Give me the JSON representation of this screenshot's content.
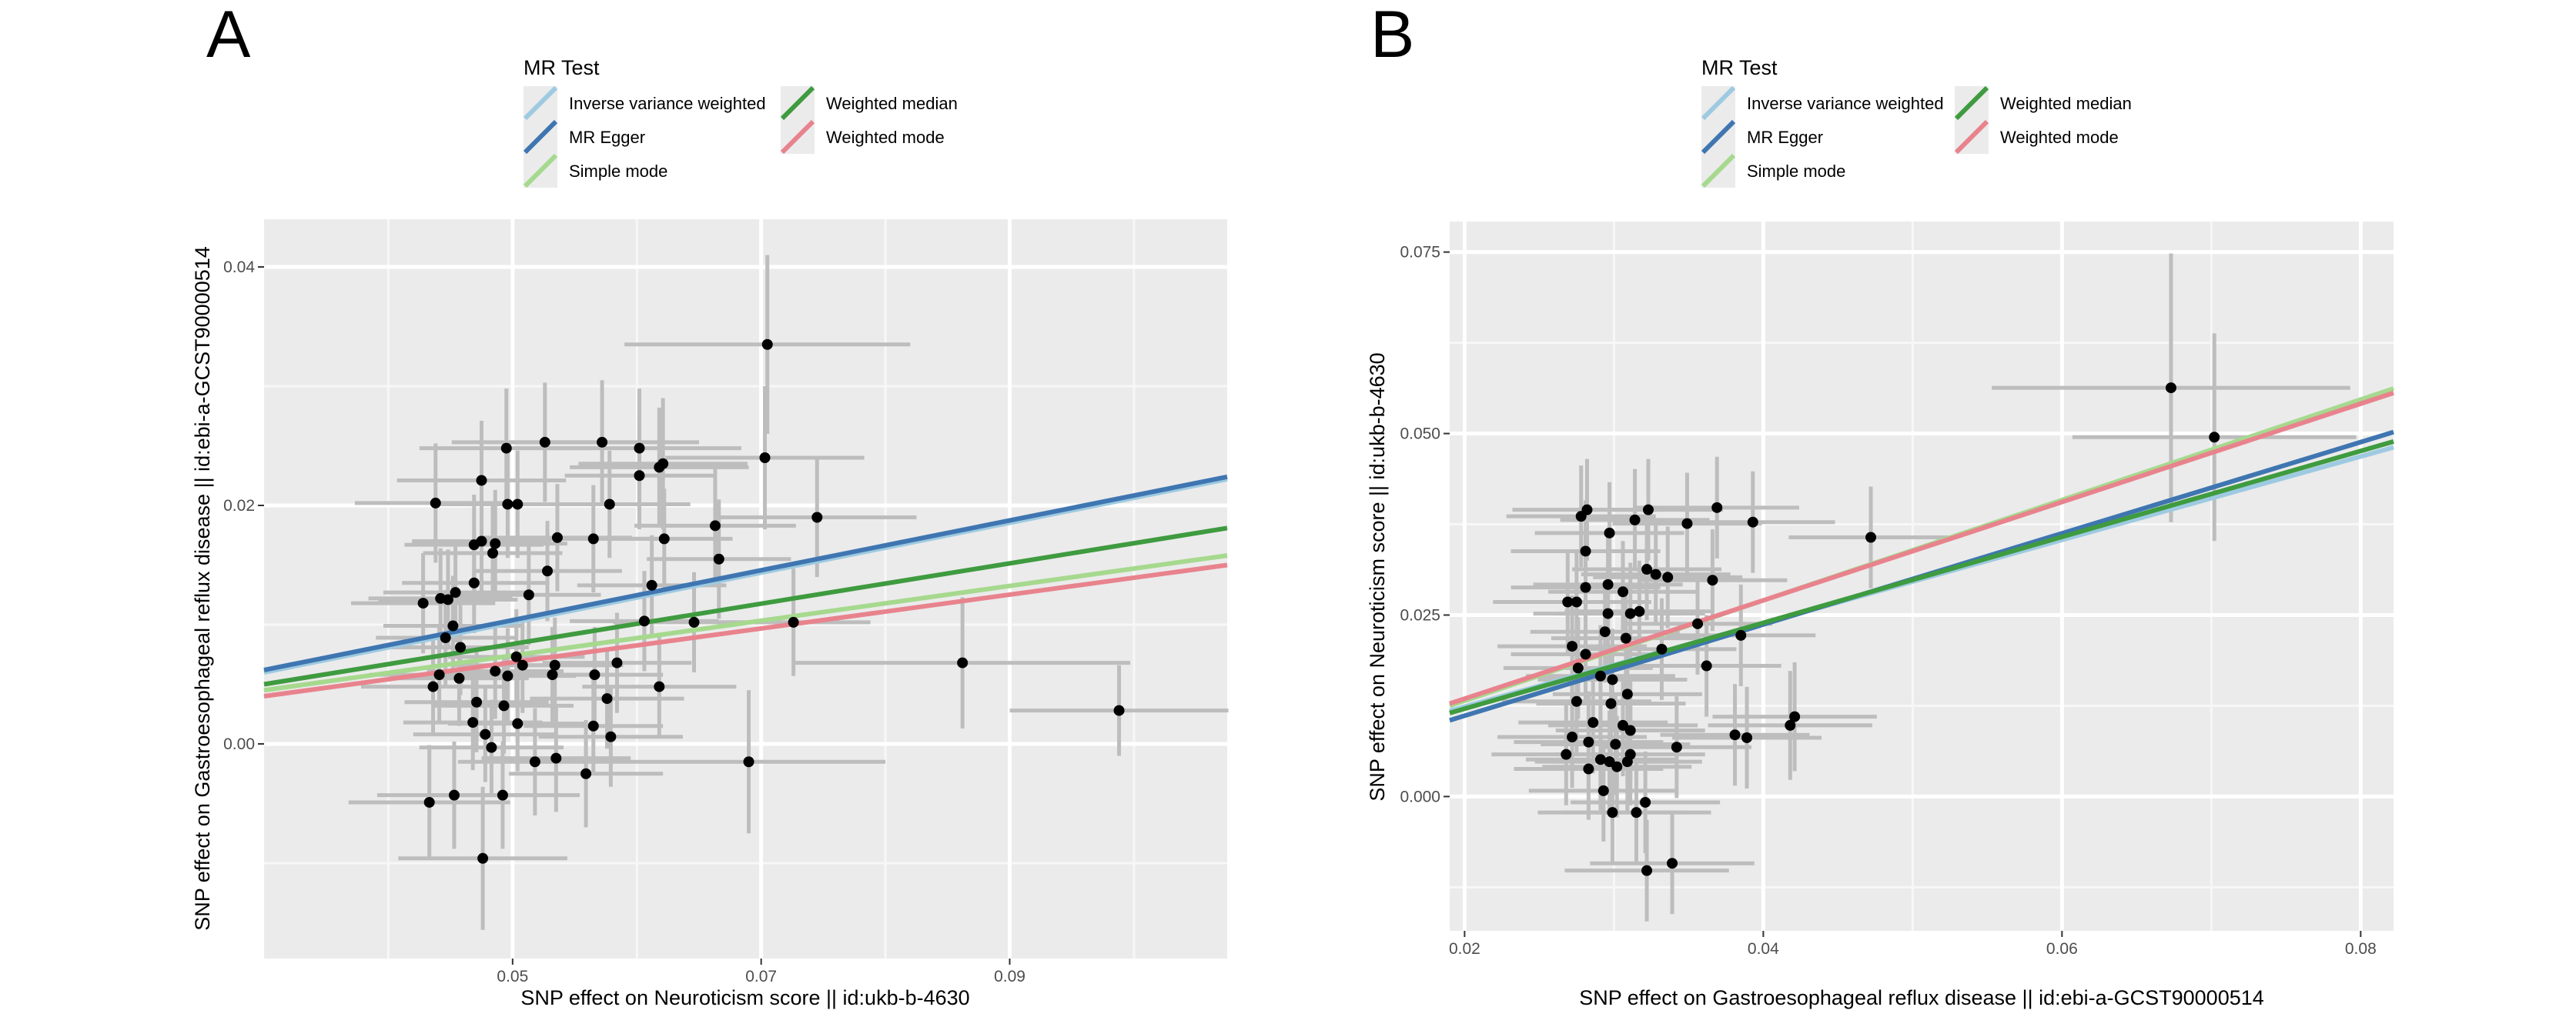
{
  "legend": {
    "title": "MR Test",
    "items": [
      {
        "label": "Inverse variance weighted",
        "color": "#9ecae1"
      },
      {
        "label": "MR Egger",
        "color": "#3f76b1"
      },
      {
        "label": "Simple mode",
        "color": "#a6d98e"
      },
      {
        "label": "Weighted median",
        "color": "#3f9b3f"
      },
      {
        "label": "Weighted mode",
        "color": "#e8838d"
      }
    ]
  },
  "chart_data": [
    {
      "type": "scatter",
      "panel_label": "A",
      "xlabel": "SNP effect on Neuroticism score || id:ukb-b-4630",
      "ylabel": "SNP effect on Gastroesophageal reflux disease || id:ebi-a-GCST90000514",
      "xlim": [
        0.03,
        0.1075
      ],
      "ylim": [
        -0.018,
        0.044
      ],
      "xticks": [
        0.05,
        0.07,
        0.09
      ],
      "xtick_labels": [
        "0.05",
        "0.07",
        "0.09"
      ],
      "yticks": [
        0.0,
        0.02,
        0.04
      ],
      "ytick_labels": [
        "0.00",
        "0.02",
        "0.04"
      ],
      "grid": true,
      "points": [
        {
          "x": 0.0705,
          "y": 0.0335,
          "xerr": 0.0115,
          "yerr": 0.0075
        },
        {
          "x": 0.0703,
          "y": 0.024,
          "xerr": 0.008,
          "yerr": 0.006
        },
        {
          "x": 0.0745,
          "y": 0.019,
          "xerr": 0.008,
          "yerr": 0.005
        },
        {
          "x": 0.0862,
          "y": 0.0068,
          "xerr": 0.0135,
          "yerr": 0.0055
        },
        {
          "x": 0.0988,
          "y": 0.0028,
          "xerr": 0.0088,
          "yerr": 0.0038
        },
        {
          "x": 0.0726,
          "y": 0.0102,
          "xerr": 0.0062,
          "yerr": 0.0045
        },
        {
          "x": 0.069,
          "y": -0.0015,
          "xerr": 0.011,
          "yerr": 0.006
        },
        {
          "x": 0.0663,
          "y": 0.0183,
          "xerr": 0.0065,
          "yerr": 0.005
        },
        {
          "x": 0.0666,
          "y": 0.0155,
          "xerr": 0.0058,
          "yerr": 0.005
        },
        {
          "x": 0.0646,
          "y": 0.0102,
          "xerr": 0.0065,
          "yerr": 0.0042
        },
        {
          "x": 0.0621,
          "y": 0.0235,
          "xerr": 0.0068,
          "yerr": 0.0055
        },
        {
          "x": 0.0618,
          "y": 0.0232,
          "xerr": 0.0072,
          "yerr": 0.005
        },
        {
          "x": 0.0602,
          "y": 0.0248,
          "xerr": 0.0082,
          "yerr": 0.005
        },
        {
          "x": 0.0602,
          "y": 0.0225,
          "xerr": 0.006,
          "yerr": 0.0045
        },
        {
          "x": 0.0622,
          "y": 0.0172,
          "xerr": 0.0055,
          "yerr": 0.0042
        },
        {
          "x": 0.0612,
          "y": 0.0133,
          "xerr": 0.006,
          "yerr": 0.0042
        },
        {
          "x": 0.0618,
          "y": 0.0048,
          "xerr": 0.0062,
          "yerr": 0.0042
        },
        {
          "x": 0.0606,
          "y": 0.0103,
          "xerr": 0.006,
          "yerr": 0.0042
        },
        {
          "x": 0.0572,
          "y": 0.0253,
          "xerr": 0.0078,
          "yerr": 0.0052
        },
        {
          "x": 0.0578,
          "y": 0.0201,
          "xerr": 0.0065,
          "yerr": 0.0045
        },
        {
          "x": 0.0565,
          "y": 0.0172,
          "xerr": 0.0058,
          "yerr": 0.0045
        },
        {
          "x": 0.0584,
          "y": 0.0068,
          "xerr": 0.006,
          "yerr": 0.0042
        },
        {
          "x": 0.0576,
          "y": 0.0038,
          "xerr": 0.0062,
          "yerr": 0.0042
        },
        {
          "x": 0.0579,
          "y": 0.0006,
          "xerr": 0.0058,
          "yerr": 0.0042
        },
        {
          "x": 0.0566,
          "y": 0.0058,
          "xerr": 0.0055,
          "yerr": 0.004
        },
        {
          "x": 0.0559,
          "y": -0.0025,
          "xerr": 0.0062,
          "yerr": 0.0045
        },
        {
          "x": 0.0565,
          "y": 0.0015,
          "xerr": 0.0056,
          "yerr": 0.004
        },
        {
          "x": 0.0526,
          "y": 0.0253,
          "xerr": 0.0075,
          "yerr": 0.005
        },
        {
          "x": 0.0536,
          "y": 0.0173,
          "xerr": 0.006,
          "yerr": 0.0045
        },
        {
          "x": 0.0528,
          "y": 0.0145,
          "xerr": 0.006,
          "yerr": 0.0042
        },
        {
          "x": 0.0532,
          "y": 0.0058,
          "xerr": 0.0055,
          "yerr": 0.004
        },
        {
          "x": 0.0534,
          "y": 0.0066,
          "xerr": 0.0055,
          "yerr": 0.004
        },
        {
          "x": 0.0535,
          "y": -0.0012,
          "xerr": 0.006,
          "yerr": 0.0045
        },
        {
          "x": 0.0518,
          "y": -0.0015,
          "xerr": 0.0062,
          "yerr": 0.0045
        },
        {
          "x": 0.0504,
          "y": 0.0201,
          "xerr": 0.0065,
          "yerr": 0.0045
        },
        {
          "x": 0.0496,
          "y": 0.0201,
          "xerr": 0.0062,
          "yerr": 0.0045
        },
        {
          "x": 0.0495,
          "y": 0.0248,
          "xerr": 0.007,
          "yerr": 0.005
        },
        {
          "x": 0.0486,
          "y": 0.0168,
          "xerr": 0.0058,
          "yerr": 0.0045
        },
        {
          "x": 0.0484,
          "y": 0.016,
          "xerr": 0.0056,
          "yerr": 0.0042
        },
        {
          "x": 0.0475,
          "y": 0.017,
          "xerr": 0.0056,
          "yerr": 0.0042
        },
        {
          "x": 0.0475,
          "y": 0.0221,
          "xerr": 0.0068,
          "yerr": 0.005
        },
        {
          "x": 0.0469,
          "y": 0.0135,
          "xerr": 0.0058,
          "yerr": 0.0042
        },
        {
          "x": 0.0469,
          "y": 0.0167,
          "xerr": 0.0056,
          "yerr": 0.0042
        },
        {
          "x": 0.0513,
          "y": 0.0125,
          "xerr": 0.0058,
          "yerr": 0.0042
        },
        {
          "x": 0.0503,
          "y": 0.0073,
          "xerr": 0.0055,
          "yerr": 0.004
        },
        {
          "x": 0.0508,
          "y": 0.0066,
          "xerr": 0.0055,
          "yerr": 0.004
        },
        {
          "x": 0.0496,
          "y": 0.0057,
          "xerr": 0.0055,
          "yerr": 0.004
        },
        {
          "x": 0.0486,
          "y": 0.0061,
          "xerr": 0.0055,
          "yerr": 0.004
        },
        {
          "x": 0.0493,
          "y": 0.0032,
          "xerr": 0.0056,
          "yerr": 0.004
        },
        {
          "x": 0.0504,
          "y": 0.0017,
          "xerr": 0.0056,
          "yerr": 0.004
        },
        {
          "x": 0.0471,
          "y": 0.0035,
          "xerr": 0.0058,
          "yerr": 0.0042
        },
        {
          "x": 0.0468,
          "y": 0.0018,
          "xerr": 0.0056,
          "yerr": 0.004
        },
        {
          "x": 0.0478,
          "y": 0.0008,
          "xerr": 0.0058,
          "yerr": 0.004
        },
        {
          "x": 0.0483,
          "y": -0.0003,
          "xerr": 0.0058,
          "yerr": 0.004
        },
        {
          "x": 0.0492,
          "y": -0.0043,
          "xerr": 0.0062,
          "yerr": 0.0045
        },
        {
          "x": 0.0476,
          "y": -0.0096,
          "xerr": 0.0068,
          "yerr": 0.006
        },
        {
          "x": 0.0454,
          "y": 0.0127,
          "xerr": 0.0058,
          "yerr": 0.0042
        },
        {
          "x": 0.0448,
          "y": 0.0121,
          "xerr": 0.0056,
          "yerr": 0.0042
        },
        {
          "x": 0.0442,
          "y": 0.0122,
          "xerr": 0.0058,
          "yerr": 0.0042
        },
        {
          "x": 0.0438,
          "y": 0.0202,
          "xerr": 0.0065,
          "yerr": 0.005
        },
        {
          "x": 0.0428,
          "y": 0.0118,
          "xerr": 0.0058,
          "yerr": 0.0042
        },
        {
          "x": 0.0452,
          "y": 0.0099,
          "xerr": 0.0056,
          "yerr": 0.0042
        },
        {
          "x": 0.0446,
          "y": 0.0089,
          "xerr": 0.0056,
          "yerr": 0.004
        },
        {
          "x": 0.0458,
          "y": 0.0081,
          "xerr": 0.0055,
          "yerr": 0.004
        },
        {
          "x": 0.0441,
          "y": 0.0058,
          "xerr": 0.0056,
          "yerr": 0.004
        },
        {
          "x": 0.0436,
          "y": 0.0048,
          "xerr": 0.0058,
          "yerr": 0.004
        },
        {
          "x": 0.0457,
          "y": 0.0055,
          "xerr": 0.0056,
          "yerr": 0.004
        },
        {
          "x": 0.0453,
          "y": -0.0043,
          "xerr": 0.0062,
          "yerr": 0.0045
        },
        {
          "x": 0.0433,
          "y": -0.0049,
          "xerr": 0.0065,
          "yerr": 0.0048
        }
      ],
      "lines": [
        {
          "x": [
            0.03,
            0.1075
          ],
          "y": [
            0.006,
            0.0222
          ]
        },
        {
          "x": [
            0.03,
            0.1075
          ],
          "y": [
            0.0062,
            0.0224
          ]
        },
        {
          "x": [
            0.03,
            0.1075
          ],
          "y": [
            0.0045,
            0.0158
          ]
        },
        {
          "x": [
            0.03,
            0.1075
          ],
          "y": [
            0.005,
            0.0181
          ]
        },
        {
          "x": [
            0.03,
            0.1075
          ],
          "y": [
            0.004,
            0.015
          ]
        }
      ]
    },
    {
      "type": "scatter",
      "panel_label": "B",
      "xlabel": "SNP effect on Gastroesophageal reflux disease || id:ebi-a-GCST90000514",
      "ylabel": "SNP effect on Neuroticism score || id:ukb-b-4630",
      "xlim": [
        0.019,
        0.0822
      ],
      "ylim": [
        -0.0185,
        0.0792
      ],
      "xticks": [
        0.02,
        0.04,
        0.06,
        0.08
      ],
      "xtick_labels": [
        "0.02",
        "0.04",
        "0.06",
        "0.08"
      ],
      "yticks": [
        0.0,
        0.025,
        0.05,
        0.075
      ],
      "ytick_labels": [
        "0.000",
        "0.025",
        "0.050",
        "0.075"
      ],
      "grid": true,
      "points": [
        {
          "x": 0.0673,
          "y": 0.0563,
          "xerr": 0.012,
          "yerr": 0.0185
        },
        {
          "x": 0.0702,
          "y": 0.0495,
          "xerr": 0.0095,
          "yerr": 0.0143
        },
        {
          "x": 0.0472,
          "y": 0.0357,
          "xerr": 0.0055,
          "yerr": 0.007
        },
        {
          "x": 0.0421,
          "y": 0.011,
          "xerr": 0.0055,
          "yerr": 0.0075
        },
        {
          "x": 0.0418,
          "y": 0.0098,
          "xerr": 0.0055,
          "yerr": 0.0075
        },
        {
          "x": 0.0389,
          "y": 0.0081,
          "xerr": 0.005,
          "yerr": 0.007
        },
        {
          "x": 0.0381,
          "y": 0.0085,
          "xerr": 0.005,
          "yerr": 0.007
        },
        {
          "x": 0.0393,
          "y": 0.0378,
          "xerr": 0.0055,
          "yerr": 0.007
        },
        {
          "x": 0.0369,
          "y": 0.0398,
          "xerr": 0.0055,
          "yerr": 0.007
        },
        {
          "x": 0.0356,
          "y": 0.0238,
          "xerr": 0.005,
          "yerr": 0.007
        },
        {
          "x": 0.0362,
          "y": 0.018,
          "xerr": 0.005,
          "yerr": 0.007
        },
        {
          "x": 0.0366,
          "y": 0.0298,
          "xerr": 0.005,
          "yerr": 0.007
        },
        {
          "x": 0.0349,
          "y": 0.0376,
          "xerr": 0.005,
          "yerr": 0.007
        },
        {
          "x": 0.0385,
          "y": 0.0222,
          "xerr": 0.005,
          "yerr": 0.007
        },
        {
          "x": 0.0342,
          "y": 0.0068,
          "xerr": 0.005,
          "yerr": 0.007
        },
        {
          "x": 0.0339,
          "y": -0.0092,
          "xerr": 0.0055,
          "yerr": 0.007
        },
        {
          "x": 0.0322,
          "y": -0.0102,
          "xerr": 0.0055,
          "yerr": 0.007
        },
        {
          "x": 0.0321,
          "y": -0.0008,
          "xerr": 0.005,
          "yerr": 0.007
        },
        {
          "x": 0.0315,
          "y": -0.0022,
          "xerr": 0.005,
          "yerr": 0.007
        },
        {
          "x": 0.0328,
          "y": 0.0306,
          "xerr": 0.005,
          "yerr": 0.007
        },
        {
          "x": 0.0322,
          "y": 0.0313,
          "xerr": 0.005,
          "yerr": 0.007
        },
        {
          "x": 0.0336,
          "y": 0.0302,
          "xerr": 0.005,
          "yerr": 0.007
        },
        {
          "x": 0.0323,
          "y": 0.0395,
          "xerr": 0.005,
          "yerr": 0.007
        },
        {
          "x": 0.0314,
          "y": 0.0381,
          "xerr": 0.005,
          "yerr": 0.007
        },
        {
          "x": 0.0317,
          "y": 0.0255,
          "xerr": 0.005,
          "yerr": 0.007
        },
        {
          "x": 0.0311,
          "y": 0.0252,
          "xerr": 0.005,
          "yerr": 0.007
        },
        {
          "x": 0.0308,
          "y": 0.0218,
          "xerr": 0.005,
          "yerr": 0.007
        },
        {
          "x": 0.0332,
          "y": 0.0203,
          "xerr": 0.005,
          "yerr": 0.007
        },
        {
          "x": 0.0306,
          "y": 0.0282,
          "xerr": 0.005,
          "yerr": 0.007
        },
        {
          "x": 0.0296,
          "y": 0.0292,
          "xerr": 0.005,
          "yerr": 0.007
        },
        {
          "x": 0.0297,
          "y": 0.0363,
          "xerr": 0.005,
          "yerr": 0.007
        },
        {
          "x": 0.0282,
          "y": 0.0395,
          "xerr": 0.005,
          "yerr": 0.007
        },
        {
          "x": 0.0278,
          "y": 0.0386,
          "xerr": 0.005,
          "yerr": 0.007
        },
        {
          "x": 0.0281,
          "y": 0.0338,
          "xerr": 0.005,
          "yerr": 0.007
        },
        {
          "x": 0.0296,
          "y": 0.0252,
          "xerr": 0.005,
          "yerr": 0.007
        },
        {
          "x": 0.0281,
          "y": 0.0288,
          "xerr": 0.005,
          "yerr": 0.007
        },
        {
          "x": 0.0275,
          "y": 0.0268,
          "xerr": 0.005,
          "yerr": 0.007
        },
        {
          "x": 0.0294,
          "y": 0.0227,
          "xerr": 0.005,
          "yerr": 0.007
        },
        {
          "x": 0.0272,
          "y": 0.0207,
          "xerr": 0.005,
          "yerr": 0.007
        },
        {
          "x": 0.0281,
          "y": 0.0196,
          "xerr": 0.005,
          "yerr": 0.007
        },
        {
          "x": 0.0276,
          "y": 0.0177,
          "xerr": 0.005,
          "yerr": 0.007
        },
        {
          "x": 0.0291,
          "y": 0.0166,
          "xerr": 0.005,
          "yerr": 0.007
        },
        {
          "x": 0.0299,
          "y": 0.0161,
          "xerr": 0.005,
          "yerr": 0.007
        },
        {
          "x": 0.0298,
          "y": 0.0128,
          "xerr": 0.005,
          "yerr": 0.007
        },
        {
          "x": 0.0309,
          "y": 0.0141,
          "xerr": 0.005,
          "yerr": 0.007
        },
        {
          "x": 0.0306,
          "y": 0.0098,
          "xerr": 0.005,
          "yerr": 0.007
        },
        {
          "x": 0.0311,
          "y": 0.0091,
          "xerr": 0.005,
          "yerr": 0.007
        },
        {
          "x": 0.0301,
          "y": 0.0072,
          "xerr": 0.005,
          "yerr": 0.007
        },
        {
          "x": 0.0286,
          "y": 0.0102,
          "xerr": 0.005,
          "yerr": 0.007
        },
        {
          "x": 0.0283,
          "y": 0.0075,
          "xerr": 0.005,
          "yerr": 0.007
        },
        {
          "x": 0.0272,
          "y": 0.0082,
          "xerr": 0.005,
          "yerr": 0.007
        },
        {
          "x": 0.0275,
          "y": 0.0131,
          "xerr": 0.005,
          "yerr": 0.007
        },
        {
          "x": 0.0269,
          "y": 0.0268,
          "xerr": 0.005,
          "yerr": 0.007
        },
        {
          "x": 0.0268,
          "y": 0.0058,
          "xerr": 0.005,
          "yerr": 0.007
        },
        {
          "x": 0.0283,
          "y": 0.0038,
          "xerr": 0.005,
          "yerr": 0.007
        },
        {
          "x": 0.0291,
          "y": 0.0051,
          "xerr": 0.005,
          "yerr": 0.007
        },
        {
          "x": 0.0297,
          "y": 0.0048,
          "xerr": 0.005,
          "yerr": 0.007
        },
        {
          "x": 0.0302,
          "y": 0.0041,
          "xerr": 0.005,
          "yerr": 0.007
        },
        {
          "x": 0.0311,
          "y": 0.0058,
          "xerr": 0.005,
          "yerr": 0.007
        },
        {
          "x": 0.0309,
          "y": 0.0048,
          "xerr": 0.005,
          "yerr": 0.007
        },
        {
          "x": 0.0293,
          "y": 0.0008,
          "xerr": 0.005,
          "yerr": 0.007
        },
        {
          "x": 0.0299,
          "y": -0.0022,
          "xerr": 0.005,
          "yerr": 0.007
        }
      ],
      "lines": [
        {
          "x": [
            0.019,
            0.0822
          ],
          "y": [
            0.0118,
            0.0481
          ]
        },
        {
          "x": [
            0.019,
            0.0822
          ],
          "y": [
            0.0105,
            0.0502
          ]
        },
        {
          "x": [
            0.019,
            0.0822
          ],
          "y": [
            0.0125,
            0.0562
          ]
        },
        {
          "x": [
            0.019,
            0.0822
          ],
          "y": [
            0.0115,
            0.0489
          ]
        },
        {
          "x": [
            0.019,
            0.0822
          ],
          "y": [
            0.0128,
            0.0556
          ]
        }
      ]
    }
  ]
}
